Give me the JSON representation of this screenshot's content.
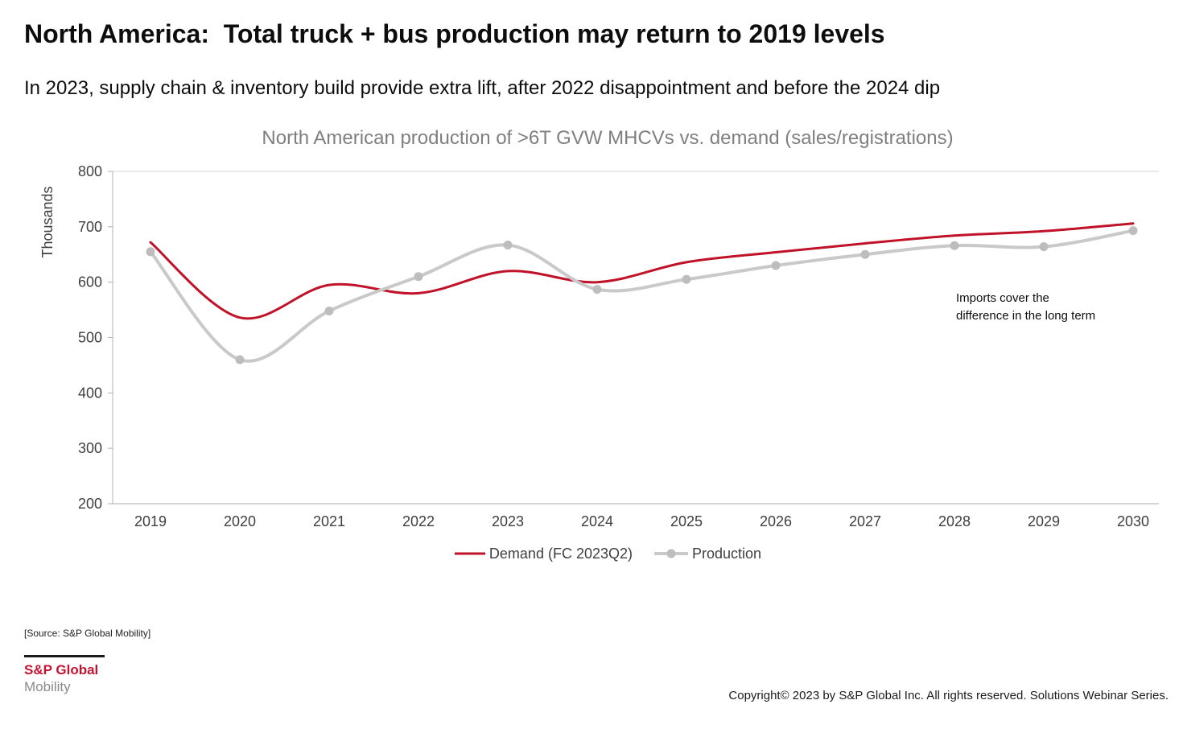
{
  "slide": {
    "title": "North America:  Total truck + bus production may return to 2019 levels",
    "subtitle": "In 2023, supply chain & inventory build provide extra lift, after 2022 disappointment and before the 2024 dip",
    "source_note": "[Source: S&P Global Mobility]",
    "copyright": "Copyright© 2023 by S&P Global Inc. All rights reserved. Solutions Webinar Series.",
    "logo": {
      "line1": "S&P Global",
      "line2": "Mobility"
    }
  },
  "chart_data": {
    "type": "line",
    "title": "North American production of >6T GVW MHCVs vs. demand (sales/registrations)",
    "xlabel": "",
    "ylabel": "Thousands",
    "ylim": [
      200,
      800
    ],
    "ytick_step": 100,
    "grid": "top-line-only",
    "legend_position": "bottom",
    "categories": [
      "2019",
      "2020",
      "2021",
      "2022",
      "2023",
      "2024",
      "2025",
      "2026",
      "2027",
      "2028",
      "2029",
      "2030"
    ],
    "series": [
      {
        "name": "Demand (FC 2023Q2)",
        "color": "#c01228",
        "stroke_width": 3,
        "marker": false,
        "values": [
          672,
          536,
          595,
          580,
          620,
          600,
          636,
          654,
          670,
          684,
          692,
          706
        ]
      },
      {
        "name": "Production",
        "color": "#c9c9c9",
        "marker_color": "#bdbdbd",
        "stroke_width": 4,
        "marker": true,
        "values": [
          655,
          460,
          548,
          610,
          667,
          587,
          605,
          630,
          650,
          666,
          664,
          693
        ]
      }
    ],
    "annotation": {
      "line1": "Imports cover the",
      "line2": "difference in the long term"
    }
  },
  "colors": {
    "demand_red": "#c01228",
    "production_gray": "#c9c9c9",
    "axis_gray": "#a8a8a8",
    "chart_title_gray": "#7f7f7f",
    "logo_red": "#c41230",
    "logo_gray": "#8a8a8a"
  }
}
